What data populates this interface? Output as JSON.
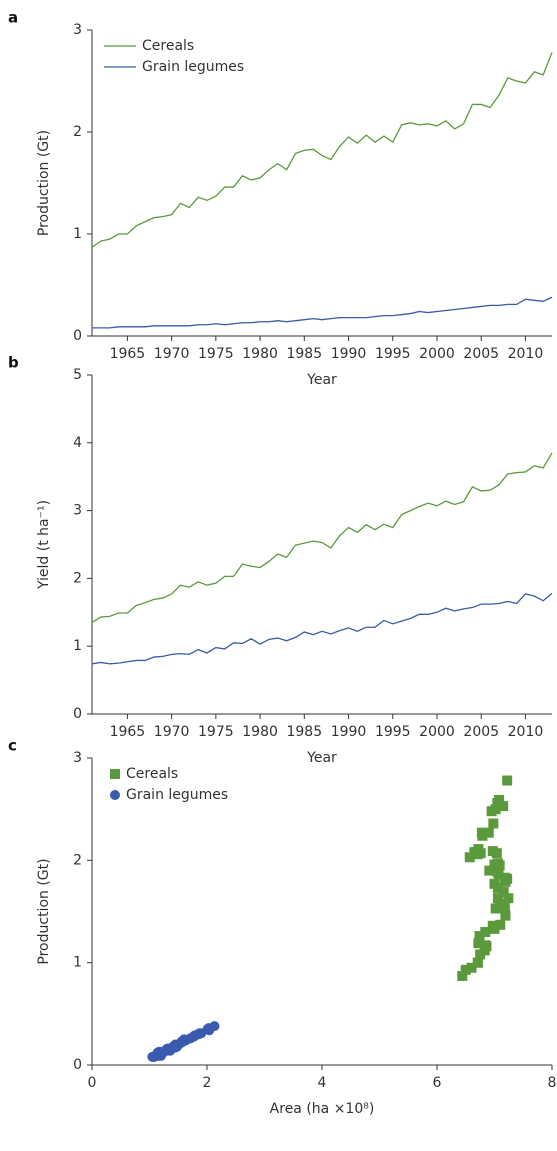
{
  "chart_data": [
    {
      "label": "a",
      "type": "line",
      "xlabel": "Year",
      "ylabel": "Production (Gt)",
      "x": [
        1961,
        1962,
        1963,
        1964,
        1965,
        1966,
        1967,
        1968,
        1969,
        1970,
        1971,
        1972,
        1973,
        1974,
        1975,
        1976,
        1977,
        1978,
        1979,
        1980,
        1981,
        1982,
        1983,
        1984,
        1985,
        1986,
        1987,
        1988,
        1989,
        1990,
        1991,
        1992,
        1993,
        1994,
        1995,
        1996,
        1997,
        1998,
        1999,
        2000,
        2001,
        2002,
        2003,
        2004,
        2005,
        2006,
        2007,
        2008,
        2009,
        2010,
        2011,
        2012,
        2013
      ],
      "xlim": [
        1961,
        2013
      ],
      "xticks": [
        1965,
        1970,
        1975,
        1980,
        1985,
        1990,
        1995,
        2000,
        2005,
        2010
      ],
      "ylim": [
        0,
        3
      ],
      "yticks": [
        0,
        1,
        2,
        3
      ],
      "legend": "upper left",
      "series": [
        {
          "name": "Cereals",
          "color": "#5b9a3c",
          "values": [
            0.87,
            0.93,
            0.95,
            1.0,
            1.0,
            1.08,
            1.12,
            1.16,
            1.17,
            1.19,
            1.3,
            1.26,
            1.36,
            1.33,
            1.37,
            1.46,
            1.46,
            1.57,
            1.53,
            1.55,
            1.63,
            1.69,
            1.63,
            1.79,
            1.82,
            1.83,
            1.77,
            1.73,
            1.86,
            1.95,
            1.89,
            1.97,
            1.9,
            1.96,
            1.9,
            2.07,
            2.09,
            2.07,
            2.08,
            2.06,
            2.11,
            2.03,
            2.08,
            2.27,
            2.27,
            2.24,
            2.36,
            2.53,
            2.5,
            2.48,
            2.59,
            2.56,
            2.78
          ]
        },
        {
          "name": "Grain legumes",
          "color": "#3a5aa8",
          "values": [
            0.08,
            0.08,
            0.08,
            0.09,
            0.09,
            0.09,
            0.09,
            0.1,
            0.1,
            0.1,
            0.1,
            0.1,
            0.11,
            0.11,
            0.12,
            0.11,
            0.12,
            0.13,
            0.13,
            0.14,
            0.14,
            0.15,
            0.14,
            0.15,
            0.16,
            0.17,
            0.16,
            0.17,
            0.18,
            0.18,
            0.18,
            0.18,
            0.19,
            0.2,
            0.2,
            0.21,
            0.22,
            0.24,
            0.23,
            0.24,
            0.25,
            0.26,
            0.27,
            0.28,
            0.29,
            0.3,
            0.3,
            0.31,
            0.31,
            0.36,
            0.35,
            0.34,
            0.38
          ]
        }
      ]
    },
    {
      "label": "b",
      "type": "line",
      "xlabel": "Year",
      "ylabel": "Yield (t ha⁻¹)",
      "x": [
        1961,
        1962,
        1963,
        1964,
        1965,
        1966,
        1967,
        1968,
        1969,
        1970,
        1971,
        1972,
        1973,
        1974,
        1975,
        1976,
        1977,
        1978,
        1979,
        1980,
        1981,
        1982,
        1983,
        1984,
        1985,
        1986,
        1987,
        1988,
        1989,
        1990,
        1991,
        1992,
        1993,
        1994,
        1995,
        1996,
        1997,
        1998,
        1999,
        2000,
        2001,
        2002,
        2003,
        2004,
        2005,
        2006,
        2007,
        2008,
        2009,
        2010,
        2011,
        2012,
        2013
      ],
      "xlim": [
        1961,
        2013
      ],
      "xticks": [
        1965,
        1970,
        1975,
        1980,
        1985,
        1990,
        1995,
        2000,
        2005,
        2010
      ],
      "ylim": [
        0,
        5
      ],
      "yticks": [
        0,
        1,
        2,
        3,
        4,
        5
      ],
      "series": [
        {
          "color": "#5b9a3c",
          "values": [
            1.35,
            1.43,
            1.44,
            1.49,
            1.49,
            1.6,
            1.64,
            1.69,
            1.71,
            1.77,
            1.9,
            1.87,
            1.95,
            1.9,
            1.93,
            2.03,
            2.03,
            2.21,
            2.18,
            2.16,
            2.25,
            2.36,
            2.31,
            2.49,
            2.52,
            2.55,
            2.53,
            2.45,
            2.63,
            2.75,
            2.68,
            2.79,
            2.72,
            2.8,
            2.75,
            2.94,
            3.0,
            3.06,
            3.11,
            3.07,
            3.14,
            3.09,
            3.13,
            3.35,
            3.29,
            3.3,
            3.38,
            3.54,
            3.56,
            3.57,
            3.66,
            3.63,
            3.85
          ]
        },
        {
          "color": "#3a5aa8",
          "values": [
            0.74,
            0.76,
            0.74,
            0.75,
            0.77,
            0.79,
            0.79,
            0.84,
            0.85,
            0.88,
            0.89,
            0.88,
            0.95,
            0.9,
            0.98,
            0.96,
            1.05,
            1.04,
            1.11,
            1.03,
            1.1,
            1.12,
            1.08,
            1.13,
            1.21,
            1.17,
            1.22,
            1.18,
            1.23,
            1.27,
            1.22,
            1.28,
            1.28,
            1.38,
            1.33,
            1.37,
            1.41,
            1.47,
            1.47,
            1.5,
            1.56,
            1.52,
            1.55,
            1.57,
            1.62,
            1.62,
            1.63,
            1.66,
            1.63,
            1.77,
            1.74,
            1.67,
            1.78
          ]
        }
      ]
    },
    {
      "label": "c",
      "type": "scatter",
      "xlabel": "Area (ha ×10⁸)",
      "ylabel": "Production (Gt)",
      "xlim": [
        0,
        8
      ],
      "xticks": [
        0,
        2,
        4,
        6,
        8
      ],
      "ylim": [
        0,
        3
      ],
      "yticks": [
        0,
        1,
        2,
        3
      ],
      "legend": "upper left",
      "series": [
        {
          "name": "Cereals",
          "color": "#5b9a3c",
          "marker": "square",
          "x": [
            6.44,
            6.5,
            6.6,
            6.71,
            6.71,
            6.75,
            6.83,
            6.86,
            6.84,
            6.72,
            6.84,
            6.74,
            6.97,
            7.0,
            7.1,
            7.19,
            7.19,
            7.1,
            7.02,
            7.18,
            7.24,
            7.16,
            7.06,
            7.19,
            7.22,
            7.18,
            7.0,
            7.06,
            7.07,
            7.09,
            7.05,
            7.06,
            6.99,
            7.0,
            6.91,
            7.04,
            6.97,
            6.76,
            6.69,
            6.71,
            6.72,
            6.57,
            6.65,
            6.78,
            6.9,
            6.79,
            6.98,
            7.15,
            7.02,
            6.95,
            7.08,
            7.05,
            7.22
          ],
          "values": [
            0.87,
            0.93,
            0.95,
            1.0,
            1.0,
            1.08,
            1.12,
            1.16,
            1.17,
            1.19,
            1.3,
            1.26,
            1.36,
            1.33,
            1.37,
            1.46,
            1.46,
            1.57,
            1.53,
            1.55,
            1.63,
            1.69,
            1.63,
            1.79,
            1.82,
            1.83,
            1.77,
            1.73,
            1.86,
            1.95,
            1.89,
            1.97,
            1.9,
            1.96,
            1.9,
            2.07,
            2.09,
            2.07,
            2.08,
            2.06,
            2.11,
            2.03,
            2.08,
            2.27,
            2.27,
            2.24,
            2.36,
            2.53,
            2.5,
            2.48,
            2.59,
            2.56,
            2.78
          ]
        },
        {
          "name": "Grain legumes",
          "color": "#3a5ab0",
          "marker": "circle",
          "x": [
            1.08,
            1.05,
            1.08,
            1.2,
            1.17,
            1.14,
            1.14,
            1.19,
            1.18,
            1.14,
            1.12,
            1.14,
            1.16,
            1.22,
            1.22,
            1.15,
            1.14,
            1.25,
            1.17,
            1.36,
            1.27,
            1.34,
            1.3,
            1.33,
            1.32,
            1.45,
            1.31,
            1.44,
            1.46,
            1.42,
            1.48,
            1.41,
            1.48,
            1.45,
            1.5,
            1.53,
            1.56,
            1.63,
            1.56,
            1.6,
            1.6,
            1.71,
            1.74,
            1.78,
            1.79,
            1.85,
            1.84,
            1.87,
            1.9,
            2.03,
            2.01,
            2.04,
            2.13
          ],
          "values": [
            0.08,
            0.08,
            0.08,
            0.09,
            0.09,
            0.09,
            0.09,
            0.1,
            0.1,
            0.1,
            0.1,
            0.1,
            0.11,
            0.11,
            0.12,
            0.11,
            0.12,
            0.13,
            0.13,
            0.14,
            0.14,
            0.15,
            0.14,
            0.15,
            0.16,
            0.17,
            0.16,
            0.17,
            0.18,
            0.18,
            0.18,
            0.18,
            0.19,
            0.2,
            0.2,
            0.21,
            0.22,
            0.24,
            0.23,
            0.24,
            0.25,
            0.26,
            0.27,
            0.28,
            0.29,
            0.3,
            0.3,
            0.31,
            0.31,
            0.36,
            0.35,
            0.34,
            0.38
          ]
        }
      ]
    }
  ]
}
